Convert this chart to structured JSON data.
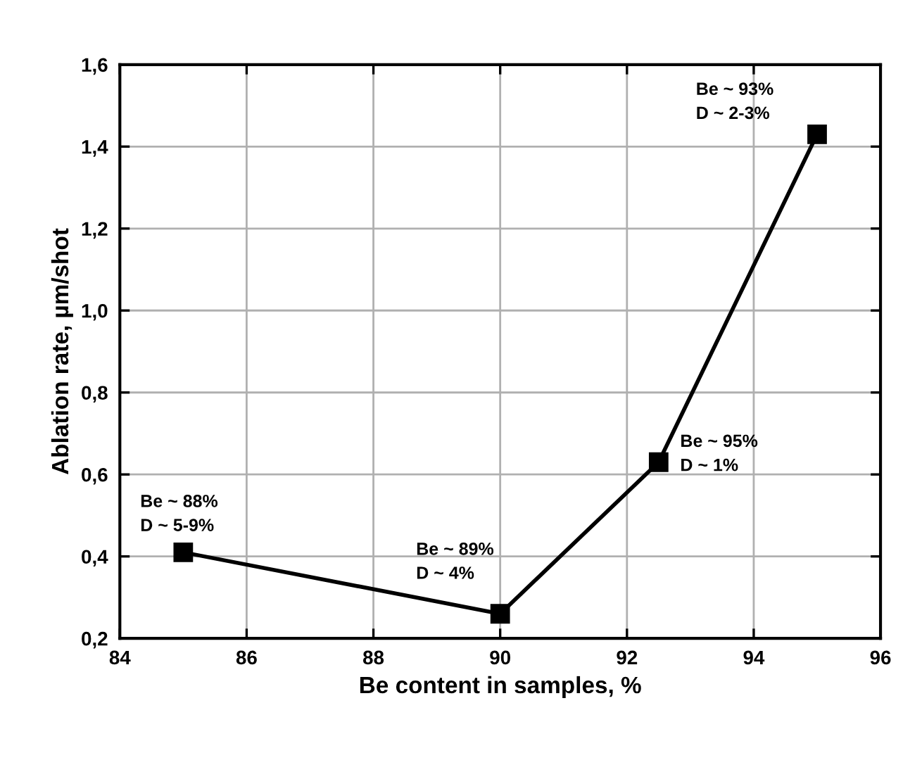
{
  "chart_data": {
    "type": "line",
    "xlabel": "Be content in samples, %",
    "ylabel": "Ablation rate, µm/shot",
    "x": [
      85,
      90,
      92.5,
      95
    ],
    "series": [
      {
        "color": "#000000",
        "values": [
          0.41,
          0.26,
          0.63,
          1.43
        ]
      }
    ],
    "marker": "square",
    "line_style": "solid",
    "grid": true,
    "xlim": [
      84,
      96
    ],
    "xticks": [
      84,
      86,
      88,
      90,
      92,
      94,
      96
    ],
    "ylim": [
      0.2,
      1.6
    ],
    "yticks": [
      {
        "value": 0.2,
        "label": "0,2"
      },
      {
        "value": 0.4,
        "label": "0,4"
      },
      {
        "value": 0.6,
        "label": "0,6"
      },
      {
        "value": 0.8,
        "label": "0,8"
      },
      {
        "value": 1.0,
        "label": "1,0"
      },
      {
        "value": 1.2,
        "label": "1,2"
      },
      {
        "value": 1.4,
        "label": "1,4"
      },
      {
        "value": 1.6,
        "label": "1,6"
      }
    ],
    "annotations": [
      {
        "text": "Be ~ 88%\nD ~ 5-9%",
        "x": 85,
        "y": 0.41
      },
      {
        "text": "Be ~ 89%\nD ~ 4%",
        "x": 90,
        "y": 0.26
      },
      {
        "text": "Be ~ 95%\nD ~ 1%",
        "x": 92.5,
        "y": 0.63
      },
      {
        "text": "Be ~ 93%\nD ~ 2-3%",
        "x": 95,
        "y": 1.43
      }
    ]
  }
}
